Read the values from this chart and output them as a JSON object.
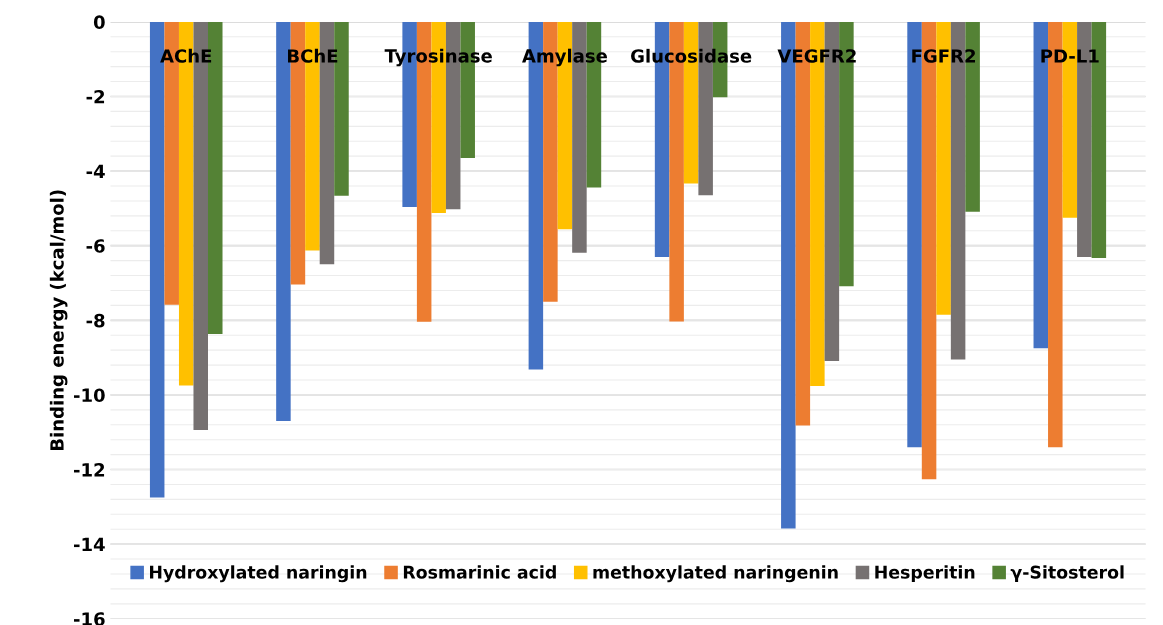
{
  "chart_data": {
    "type": "bar",
    "ylabel": "Binding energy (kcal/mol)",
    "categories": [
      "AChE",
      "BChE",
      "Tyrosinase",
      "Amylase",
      "Glucosidase",
      "VEGFR2",
      "FGFR2",
      "PD-L1"
    ],
    "series": [
      {
        "name": "Hydroxylated naringin",
        "color": "#4472c4",
        "values": [
          -12.75,
          -10.7,
          -4.96,
          -9.32,
          -6.3,
          -13.58,
          -11.4,
          -8.75
        ]
      },
      {
        "name": "Rosmarinic acid",
        "color": "#ed7d31",
        "values": [
          -7.58,
          -7.04,
          -8.04,
          -7.5,
          -8.03,
          -10.82,
          -12.26,
          -11.4
        ]
      },
      {
        "name": "methoxylated naringenin",
        "color": "#ffc000",
        "values": [
          -9.75,
          -6.13,
          -5.12,
          -5.56,
          -4.33,
          -9.76,
          -7.85,
          -5.25
        ]
      },
      {
        "name": "Hesperitin",
        "color": "#767171",
        "values": [
          -10.94,
          -6.5,
          -5.02,
          -6.19,
          -4.65,
          -9.09,
          -9.05,
          -6.3
        ]
      },
      {
        "name": "γ-Sitosterol",
        "color": "#548235",
        "values": [
          -8.37,
          -4.66,
          -3.65,
          -4.44,
          -2.02,
          -7.09,
          -5.09,
          -6.33
        ]
      }
    ],
    "ylim": [
      -16,
      0
    ],
    "yticks": [
      -16,
      -14,
      -12,
      -10,
      -8,
      -6,
      -4,
      -2,
      0
    ],
    "grid": true,
    "legend": "bottom"
  }
}
